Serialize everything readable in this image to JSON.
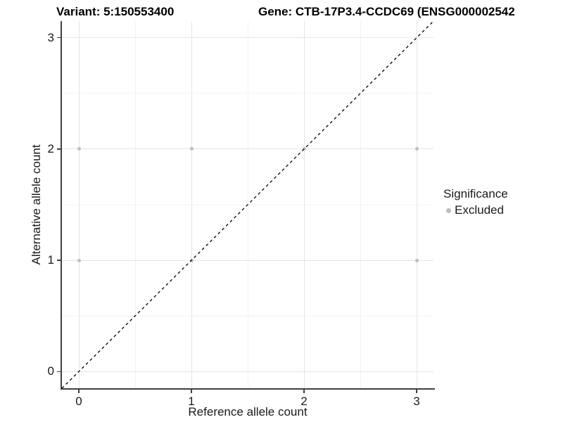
{
  "chart_data": {
    "type": "scatter",
    "title_variant": "Variant: 5:150553400",
    "title_gene": "Gene: CTB-17P3.4-CCDC69 (ENSG000002542",
    "xlabel": "Reference allele count",
    "ylabel": "Alternative allele count",
    "xlim": [
      -0.15,
      3.15
    ],
    "ylim": [
      -0.15,
      3.15
    ],
    "x_ticks": [
      0,
      1,
      2,
      3
    ],
    "y_ticks": [
      0,
      1,
      2,
      3
    ],
    "minor_gridlines": [
      0.5,
      1.5,
      2.5
    ],
    "grid": true,
    "legend_position": "right",
    "series": [
      {
        "name": "Excluded",
        "color": "#bdbdbd",
        "points": [
          [
            0,
            1
          ],
          [
            0,
            2
          ],
          [
            1,
            1
          ],
          [
            1,
            2
          ],
          [
            2,
            2
          ],
          [
            3,
            1
          ],
          [
            3,
            2
          ]
        ]
      }
    ],
    "identity_line": {
      "style": "dashed",
      "color": "#000000",
      "from": [
        -0.15,
        -0.15
      ],
      "to": [
        3.15,
        3.15
      ]
    },
    "legend": {
      "title": "Significance",
      "entries": [
        {
          "label": "Excluded",
          "color": "#bdbdbd"
        }
      ]
    }
  },
  "colors": {
    "background": "#ffffff",
    "grid_major": "#e4e4e4",
    "grid_minor": "#f2f2f2",
    "axis_line": "#404040",
    "tick_text": "#1a1a1a",
    "title_text": "#000000",
    "point": "#bdbdbd",
    "identity_line": "#000000"
  }
}
